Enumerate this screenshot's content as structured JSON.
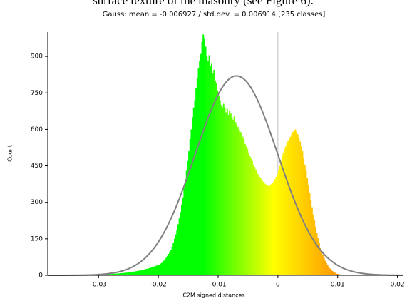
{
  "page_text": "surface texture of the masonry (see Figure 6).",
  "chart_data": {
    "type": "histogram",
    "title": "Gauss: mean = -0.006927 / std.dev. = 0.006914 [235 classes]",
    "xlabel": "C2M signed distances",
    "ylabel": "Count",
    "colormap": [
      "#00ff00",
      "#00ff00",
      "#00ff00",
      "#ffff00",
      "#ff8c00"
    ],
    "bins": [
      -0.036,
      -0.0358,
      -0.0356,
      -0.0354,
      -0.0352,
      -0.035,
      -0.0348,
      -0.0346,
      -0.0344,
      -0.0342,
      -0.034,
      -0.0338,
      -0.0336,
      -0.0334,
      -0.0332,
      -0.033,
      -0.0328,
      -0.0326,
      -0.0324,
      -0.0322,
      -0.032,
      -0.0318,
      -0.0316,
      -0.0314,
      -0.0312,
      -0.031,
      -0.0308,
      -0.0306,
      -0.0304,
      -0.0302,
      -0.03,
      -0.0298,
      -0.0296,
      -0.0294,
      -0.0292,
      -0.029,
      -0.0288,
      -0.0286,
      -0.0284,
      -0.0282,
      -0.028,
      -0.0278,
      -0.0276,
      -0.0274,
      -0.0272,
      -0.027,
      -0.0268,
      -0.0266,
      -0.0264,
      -0.0262,
      -0.026,
      -0.0258,
      -0.0256,
      -0.0254,
      -0.0252,
      -0.025,
      -0.0248,
      -0.0246,
      -0.0244,
      -0.0242,
      -0.024,
      -0.0238,
      -0.0236,
      -0.0234,
      -0.0232,
      -0.023,
      -0.0228,
      -0.0226,
      -0.0224,
      -0.0222,
      -0.022,
      -0.0218,
      -0.0216,
      -0.0214,
      -0.0212,
      -0.021,
      -0.0208,
      -0.0206,
      -0.0204,
      -0.0202,
      -0.02,
      -0.0198,
      -0.0196,
      -0.0194,
      -0.0192,
      -0.019,
      -0.0188,
      -0.0186,
      -0.0184,
      -0.0182,
      -0.018,
      -0.0178,
      -0.0176,
      -0.0174,
      -0.0172,
      -0.017,
      -0.0168,
      -0.0166,
      -0.0164,
      -0.0162,
      -0.016,
      -0.0158,
      -0.0156,
      -0.0154,
      -0.0152,
      -0.015,
      -0.0148,
      -0.0146,
      -0.0144,
      -0.0142,
      -0.014,
      -0.0138,
      -0.0136,
      -0.0134,
      -0.0132,
      -0.013,
      -0.0128,
      -0.0126,
      -0.0124,
      -0.0122,
      -0.012,
      -0.0118,
      -0.0116,
      -0.0114,
      -0.0112,
      -0.011,
      -0.0108,
      -0.0106,
      -0.0104,
      -0.0102,
      -0.01,
      -0.0098,
      -0.0096,
      -0.0094,
      -0.0092,
      -0.009,
      -0.0088,
      -0.0086,
      -0.0084,
      -0.0082,
      -0.008,
      -0.0078,
      -0.0076,
      -0.0074,
      -0.0072,
      -0.007,
      -0.0068,
      -0.0066,
      -0.0064,
      -0.0062,
      -0.006,
      -0.0058,
      -0.0056,
      -0.0054,
      -0.0052,
      -0.005,
      -0.0048,
      -0.0046,
      -0.0044,
      -0.0042,
      -0.004,
      -0.0038,
      -0.0036,
      -0.0034,
      -0.0032,
      -0.003,
      -0.0028,
      -0.0026,
      -0.0024,
      -0.0022,
      -0.002,
      -0.0018,
      -0.0016,
      -0.0014,
      -0.0012,
      -0.001,
      -0.0008,
      -0.0006,
      -0.0004,
      -0.0002,
      0,
      0.0002,
      0.0004,
      0.0006,
      0.0008,
      0.001,
      0.0012,
      0.0014,
      0.0016,
      0.0018,
      0.002,
      0.0022,
      0.0024,
      0.0026,
      0.0028,
      0.003,
      0.0032,
      0.0034,
      0.0036,
      0.0038,
      0.004,
      0.0042,
      0.0044,
      0.0046,
      0.0048,
      0.005,
      0.0052,
      0.0054,
      0.0056,
      0.0058,
      0.006,
      0.0062,
      0.0064,
      0.0066,
      0.0068,
      0.007,
      0.0072,
      0.0074,
      0.0076,
      0.0078,
      0.008,
      0.0082,
      0.0084,
      0.0086,
      0.0088,
      0.009,
      0.0092,
      0.0094,
      0.0096,
      0.0098,
      0.01,
      0.0102,
      0.0104,
      0.0106,
      0.0108,
      0.011
    ],
    "values": [
      0,
      0,
      1,
      0,
      0,
      0,
      1,
      0,
      0,
      1,
      0,
      1,
      1,
      0,
      1,
      1,
      1,
      2,
      1,
      1,
      1,
      2,
      1,
      2,
      2,
      2,
      2,
      3,
      2,
      3,
      3,
      3,
      4,
      3,
      4,
      4,
      4,
      5,
      5,
      6,
      5,
      6,
      6,
      7,
      7,
      7,
      8,
      8,
      9,
      9,
      9,
      10,
      11,
      11,
      12,
      12,
      13,
      14,
      15,
      15,
      16,
      17,
      18,
      19,
      20,
      20,
      22,
      23,
      24,
      26,
      27,
      28,
      30,
      31,
      33,
      34,
      36,
      38,
      40,
      42,
      44,
      46,
      50,
      55,
      60,
      65,
      72,
      80,
      88,
      96,
      105,
      118,
      135,
      150,
      168,
      185,
      210,
      235,
      260,
      290,
      320,
      360,
      395,
      430,
      470,
      510,
      560,
      600,
      650,
      690,
      720,
      770,
      810,
      850,
      880,
      910,
      960,
      990,
      975,
      940,
      900,
      880,
      905,
      860,
      870,
      830,
      845,
      800,
      790,
      760,
      740,
      720,
      700,
      690,
      705,
      690,
      670,
      685,
      660,
      675,
      665,
      650,
      640,
      655,
      630,
      620,
      610,
      600,
      590,
      585,
      570,
      560,
      540,
      530,
      520,
      505,
      490,
      480,
      470,
      455,
      445,
      435,
      420,
      415,
      405,
      400,
      390,
      385,
      380,
      375,
      372,
      368,
      365,
      370,
      375,
      378,
      385,
      395,
      405,
      415,
      430,
      450,
      470,
      490,
      505,
      520,
      530,
      545,
      555,
      565,
      570,
      580,
      590,
      595,
      600,
      590,
      580,
      565,
      550,
      530,
      510,
      480,
      455,
      430,
      400,
      370,
      340,
      310,
      280,
      250,
      225,
      200,
      175,
      155,
      135,
      115,
      100,
      85,
      72,
      60,
      50,
      42,
      35,
      28,
      22,
      18,
      14,
      11,
      8,
      6,
      5,
      4,
      3,
      2,
      1
    ],
    "fit": {
      "mean": -0.006927,
      "std": 0.006914,
      "peak": 820,
      "color": "#808080"
    },
    "xlim": [
      -0.0385,
      0.021
    ],
    "xticks": [
      -0.03,
      -0.02,
      -0.01,
      0,
      0.01,
      0.02
    ],
    "ylim": [
      0,
      1000
    ],
    "yticks": [
      0,
      150,
      300,
      450,
      600,
      750,
      900
    ]
  }
}
